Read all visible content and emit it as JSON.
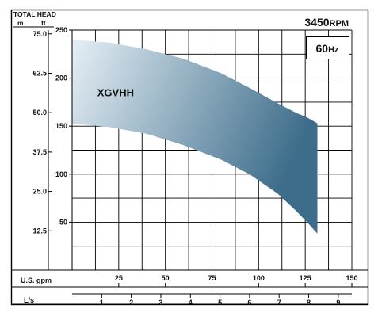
{
  "chart_data": {
    "type": "area",
    "header": {
      "title": "TOTAL HEAD",
      "unit_m": "m",
      "unit_ft": "ft"
    },
    "badges": {
      "rpm_value": "3450",
      "rpm_unit": "RPM",
      "hz_value": "60",
      "hz_unit": "Hz"
    },
    "series": [
      {
        "name": "XGVHH",
        "color_light": "#e6eff6",
        "color_dark": "#3d6d8a",
        "upper": {
          "x": [
            0,
            20,
            40,
            60,
            80,
            95,
            110,
            120,
            126,
            131.5
          ],
          "y": [
            240,
            237,
            230,
            220,
            205,
            190,
            174,
            164,
            159,
            153
          ]
        },
        "lower": {
          "x": [
            0,
            20,
            40,
            60,
            80,
            95,
            110,
            120,
            126,
            131.5
          ],
          "y": [
            153,
            149,
            142,
            130,
            115,
            100,
            80,
            62,
            50,
            38
          ]
        }
      }
    ],
    "x_axes": [
      {
        "label": "U.S. gpm",
        "range": [
          0,
          150
        ],
        "ticks": [
          "25",
          "50",
          "75",
          "100",
          "125",
          "150"
        ]
      },
      {
        "label": "L/s",
        "range": [
          0,
          9.46
        ],
        "ticks": [
          "1",
          "2",
          "3",
          "4",
          "5",
          "6",
          "7",
          "8",
          "9"
        ]
      }
    ],
    "y_axes": [
      {
        "label": "ft",
        "range": [
          0,
          250
        ],
        "ticks": [
          "50",
          "100",
          "150",
          "200",
          "250"
        ]
      },
      {
        "label": "m",
        "range": [
          0,
          76.2
        ],
        "ticks": [
          "12.5",
          "25.0",
          "37.5",
          "50.0",
          "62.5",
          "75.0"
        ]
      }
    ],
    "grid": true
  }
}
